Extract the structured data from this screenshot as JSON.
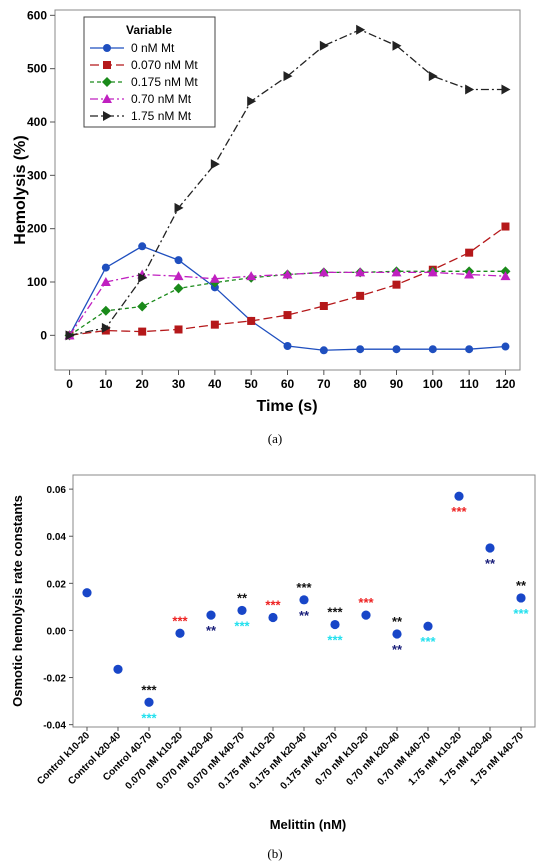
{
  "chart_data": [
    {
      "type": "line",
      "caption": "(a)",
      "xlabel": "Time (s)",
      "ylabel": "Hemolysis (%)",
      "xlim": [
        -4,
        124
      ],
      "ylim": [
        -65,
        610
      ],
      "xticks": [
        0,
        10,
        20,
        30,
        40,
        50,
        60,
        70,
        80,
        90,
        100,
        110,
        120
      ],
      "yticks": [
        0,
        100,
        200,
        300,
        400,
        500,
        600
      ],
      "x": [
        0,
        10,
        20,
        30,
        40,
        50,
        60,
        70,
        80,
        90,
        100,
        110,
        120
      ],
      "legend": {
        "title": "Variable",
        "position": "top-left"
      },
      "series": [
        {
          "name": "0 nM Mt",
          "color": "#1f4fbf",
          "marker": "circle",
          "dash": "solid",
          "values": [
            0,
            127,
            167,
            141,
            90,
            27,
            -20,
            -28,
            -26,
            -26,
            -26,
            -26,
            -21
          ]
        },
        {
          "name": "0.070 nM Mt",
          "color": "#b5181a",
          "marker": "square",
          "dash": "long",
          "values": [
            0,
            9,
            7,
            11,
            20,
            27,
            38,
            55,
            74,
            95,
            123,
            155,
            204
          ]
        },
        {
          "name": "0.175 nM Mt",
          "color": "#1a8a1a",
          "marker": "diamond",
          "dash": "short",
          "values": [
            0,
            46,
            54,
            88,
            99,
            108,
            114,
            118,
            118,
            120,
            120,
            120,
            120
          ]
        },
        {
          "name": "0.70 nM Mt",
          "color": "#c020c0",
          "marker": "triangle-up",
          "dash": "dashdot",
          "values": [
            0,
            100,
            114,
            111,
            106,
            111,
            114,
            118,
            118,
            118,
            118,
            114,
            111
          ]
        },
        {
          "name": "1.75 nM Mt",
          "color": "#222222",
          "marker": "triangle-right",
          "dash": "dashdot",
          "values": [
            0,
            14,
            108,
            239,
            321,
            439,
            486,
            543,
            573,
            543,
            486,
            461,
            461
          ]
        }
      ]
    },
    {
      "type": "scatter",
      "caption": "(b)",
      "xlabel": "Melittin (nM)",
      "ylabel": "Osmotic hemolysis rate constants",
      "ylim": [
        -0.041,
        0.066
      ],
      "yticks": [
        0.06,
        0.04,
        0.02,
        0.0,
        -0.02,
        -0.04
      ],
      "ytick_labels": [
        "0.06",
        "0.04",
        "0.02",
        "0.00",
        "-0.02",
        "-0.04"
      ],
      "point_color": "#1846c8",
      "categories": [
        "Control k10-20",
        "Control k20-40",
        "Control 40-70",
        "0.070 nM k10-20",
        "0.070 nM k20-40",
        "0.070 nM k40-70",
        "0.175 nM k10-20",
        "0.175 nM k20-40",
        "0.175 nM k40-70",
        "0.70 nM k10-20",
        "0.70 nM k20-40",
        "0.70 nM k40-70",
        "1.75 nM k10-20",
        "1.75 nM k20-40",
        "1.75 nM k40-70"
      ],
      "values": [
        0.016,
        -0.0165,
        -0.0305,
        -0.0012,
        0.0065,
        0.0085,
        0.0055,
        0.013,
        0.0025,
        0.0065,
        -0.0015,
        0.0018,
        0.057,
        0.035,
        0.0138
      ],
      "annotations": [
        {
          "index": 2,
          "above": "***",
          "above_color": "#111111",
          "below": "***",
          "below_color": "#22e0ee"
        },
        {
          "index": 3,
          "above": "***",
          "above_color": "#ee2222"
        },
        {
          "index": 4,
          "below": "**",
          "below_color": "#1a1f7a"
        },
        {
          "index": 5,
          "above": "**",
          "above_color": "#111111",
          "below": "***",
          "below_color": "#22e0ee"
        },
        {
          "index": 6,
          "above": "***",
          "above_color": "#ee2222"
        },
        {
          "index": 7,
          "above": "***",
          "above_color": "#111111",
          "below": "**",
          "below_color": "#1a1f7a"
        },
        {
          "index": 8,
          "above": "***",
          "above_color": "#111111",
          "below": "***",
          "below_color": "#22e0ee"
        },
        {
          "index": 9,
          "above": "***",
          "above_color": "#ee2222"
        },
        {
          "index": 10,
          "above": "**",
          "above_color": "#111111",
          "below": "**",
          "below_color": "#1a1f7a"
        },
        {
          "index": 11,
          "below": "***",
          "below_color": "#22e0ee"
        },
        {
          "index": 12,
          "below": "***",
          "below_color": "#ee2222"
        },
        {
          "index": 13,
          "below": "**",
          "below_color": "#1a1f7a"
        },
        {
          "index": 14,
          "above": "**",
          "above_color": "#111111",
          "below": "***",
          "below_color": "#22e0ee"
        }
      ]
    }
  ]
}
